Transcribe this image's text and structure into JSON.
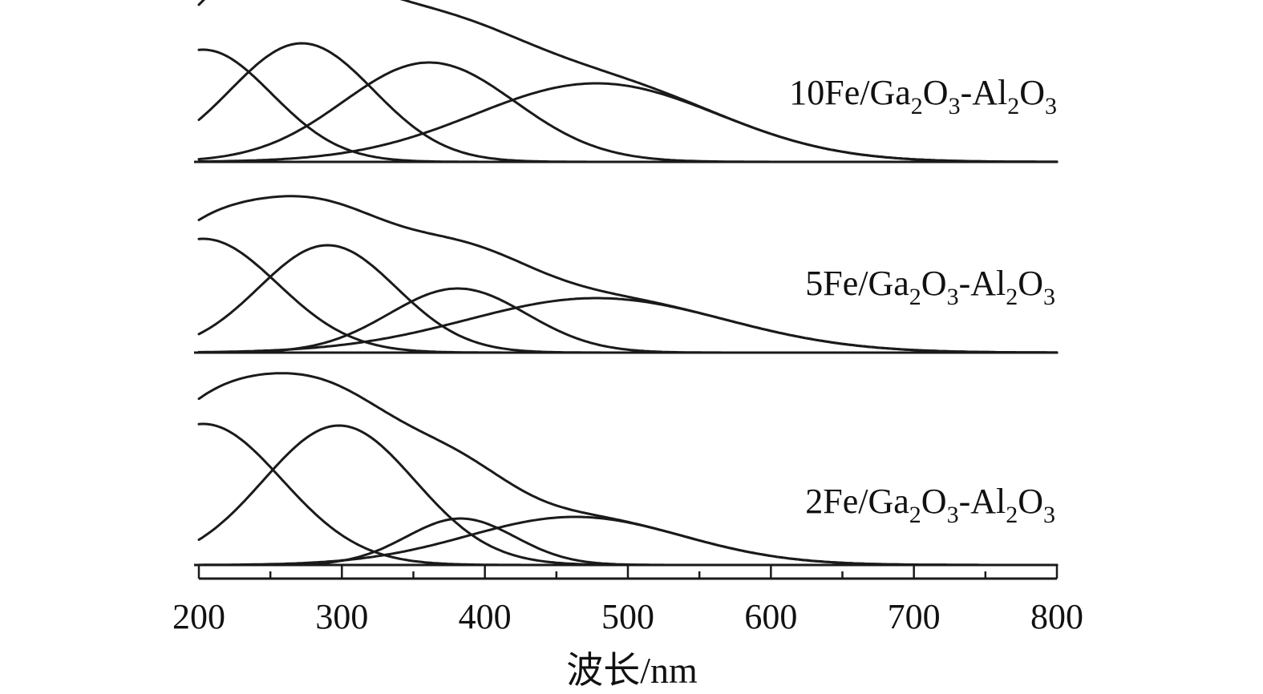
{
  "chart_data": {
    "type": "line",
    "xlabel": "波长/nm",
    "xlim": [
      200,
      800
    ],
    "xticks": [
      200,
      300,
      400,
      500,
      600,
      700,
      800
    ],
    "xticks_minor": [
      250,
      350,
      450,
      550,
      650,
      750
    ],
    "panels": [
      {
        "label": "10Fe/Ga2O3-Al2O3",
        "label_rich": {
          "main": "10Fe/Ga",
          "s1": "2",
          "m2": "O",
          "s2": "3",
          "m3": "-Al",
          "s3": "2",
          "m4": "O",
          "s4": "3"
        },
        "bands": [
          {
            "center": 203,
            "amplitude": 0.7,
            "width": 48
          },
          {
            "center": 272,
            "amplitude": 0.74,
            "width": 50
          },
          {
            "center": 361,
            "amplitude": 0.62,
            "width": 60
          },
          {
            "center": 478,
            "amplitude": 0.49,
            "width": 85
          }
        ]
      },
      {
        "label": "5Fe/Ga2O3-Al2O3",
        "label_rich": {
          "main": "5Fe/Ga",
          "s1": "2",
          "m2": "O",
          "s2": "3",
          "m3": "-Al",
          "s3": "2",
          "m4": "O",
          "s4": "3"
        },
        "bands": [
          {
            "center": 203,
            "amplitude": 0.71,
            "width": 52
          },
          {
            "center": 290,
            "amplitude": 0.67,
            "width": 48
          },
          {
            "center": 381,
            "amplitude": 0.4,
            "width": 48
          },
          {
            "center": 478,
            "amplitude": 0.34,
            "width": 90
          }
        ]
      },
      {
        "label": "2Fe/Ga2O3-Al2O3",
        "label_rich": {
          "main": "2Fe/Ga",
          "s1": "2",
          "m2": "O",
          "s2": "3",
          "m3": "-Al",
          "s3": "2",
          "m4": "O",
          "s4": "3"
        },
        "bands": [
          {
            "center": 203,
            "amplitude": 0.88,
            "width": 55
          },
          {
            "center": 298,
            "amplitude": 0.87,
            "width": 53
          },
          {
            "center": 383,
            "amplitude": 0.29,
            "width": 38
          },
          {
            "center": 463,
            "amplitude": 0.3,
            "width": 75
          }
        ]
      }
    ]
  }
}
